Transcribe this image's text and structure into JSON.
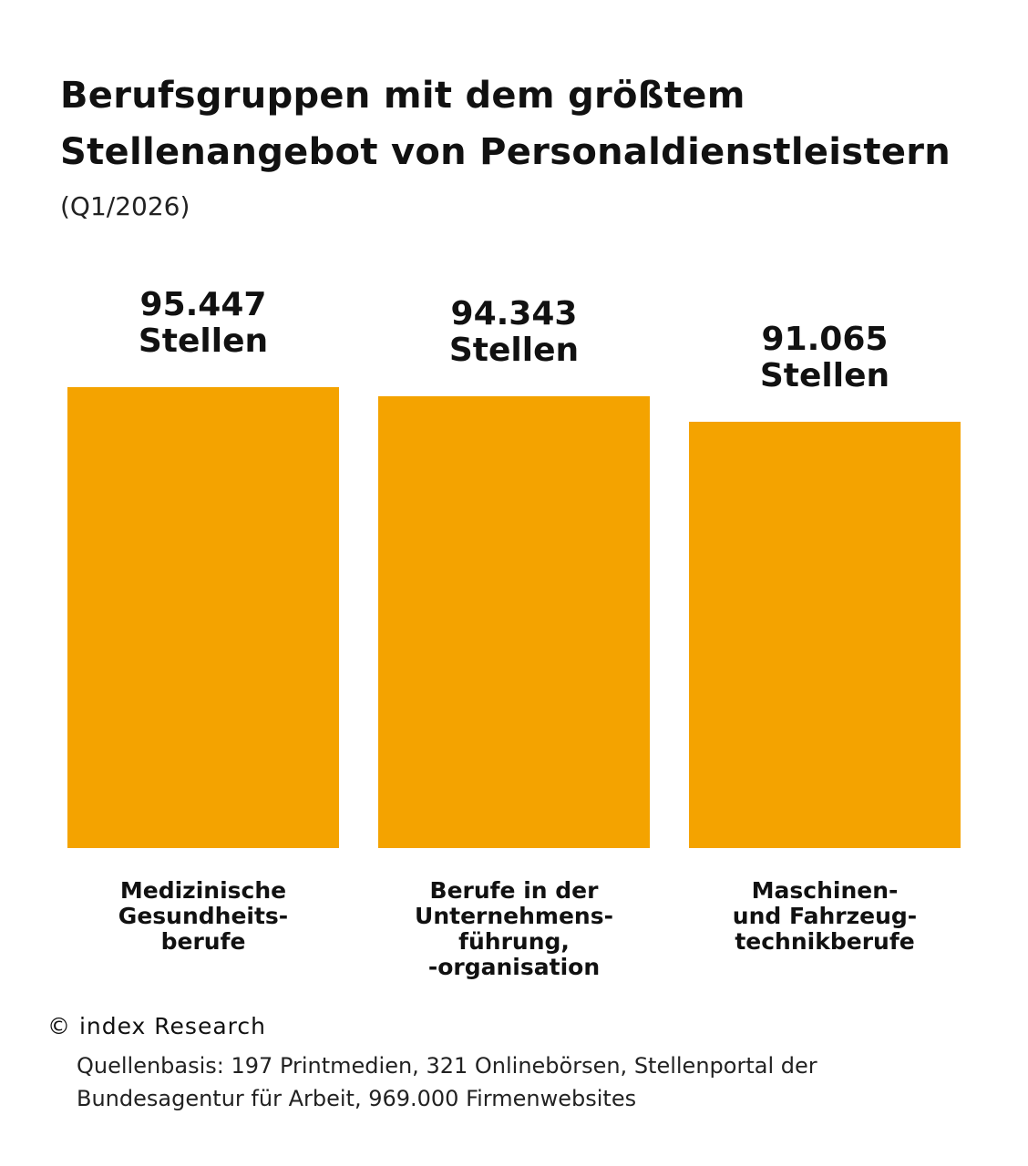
{
  "chart_data": {
    "type": "bar",
    "title": "Berufsgruppen mit dem größtem Stellenangebot von Personaldienstleistern",
    "title_lines": [
      "Berufsgruppen mit dem größtem",
      "Stellenangebot von Personaldienstleistern"
    ],
    "subtitle": "(Q1/2026)",
    "categories": [
      [
        "Medizinische",
        "Gesundheits-",
        "berufe"
      ],
      [
        "Berufe in der",
        "Unternehmens-",
        "führung,",
        "-organisation"
      ],
      [
        "Maschinen-",
        "und Fahrzeug-",
        "technikberufe"
      ]
    ],
    "values": [
      95447,
      94343,
      91065
    ],
    "value_labels": [
      [
        "95.447",
        "Stellen"
      ],
      [
        "94.343",
        "Stellen"
      ],
      [
        "91.065",
        "Stellen"
      ]
    ],
    "bar_color": "#F4A300",
    "grid": false,
    "legend": "none",
    "xlabel": "",
    "ylabel": ""
  },
  "footer": {
    "copyright": "© index Research",
    "source_lines": [
      "Quellenbasis: 197 Printmedien, 321 Onlinebörsen, Stellenportal der",
      "Bundesagentur für Arbeit, 969.000 Firmenwebsites"
    ]
  }
}
